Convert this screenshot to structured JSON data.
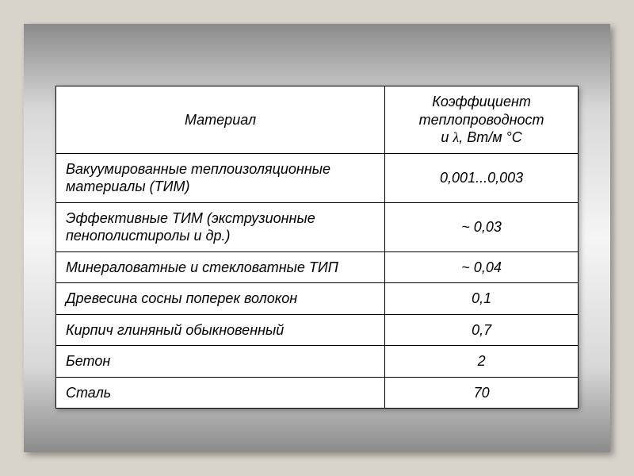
{
  "table": {
    "columns": {
      "material": "Материал",
      "coefficient": "Коэффициент теплопроводности λ, Вт/м °С"
    },
    "rows": [
      {
        "material": "Вакуумированные теплоизоляционные материалы (ТИМ)",
        "value": "0,001...0,003"
      },
      {
        "material": "Эффективные ТИМ (экструзионные пенополистиролы и др.)",
        "value": "~ 0,03"
      },
      {
        "material": "Минераловатные и стекловатные ТИП",
        "value": "~ 0,04"
      },
      {
        "material": "Древесина сосны поперек волокон",
        "value": "0,1"
      },
      {
        "material": "Кирпич глиняный обыкновенный",
        "value": "0,7"
      },
      {
        "material": "Бетон",
        "value": "2"
      },
      {
        "material": "Сталь",
        "value": "70"
      }
    ],
    "style": {
      "column_widths_pct": [
        63,
        37
      ],
      "header_align": "center",
      "material_align": "left",
      "value_align": "center",
      "font_family": "Verdana",
      "font_style": "italic",
      "font_size_pt": 14,
      "border_color": "#000000",
      "cell_background": "#ffffff"
    }
  },
  "frame": {
    "background_gradient": [
      "#8b8b8b",
      "#d8d8d8",
      "#f5f5f5",
      "#d8d8d8",
      "#8b8b8b"
    ],
    "page_background": "#d9d4cb",
    "shadow": true
  }
}
